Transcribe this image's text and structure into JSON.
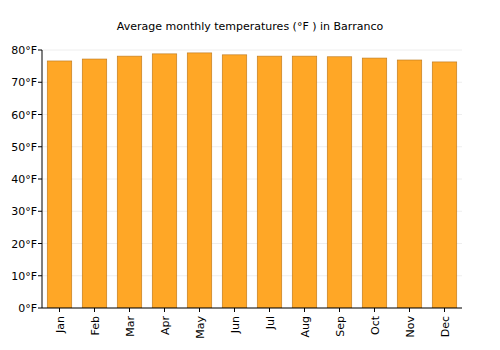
{
  "chart_data": {
    "type": "bar",
    "title": "Average monthly temperatures (°F ) in Barranco",
    "categories": [
      "Jan",
      "Feb",
      "Mar",
      "Apr",
      "May",
      "Jun",
      "Jul",
      "Aug",
      "Sep",
      "Oct",
      "Nov",
      "Dec"
    ],
    "values": [
      76.6,
      77.2,
      78.1,
      78.8,
      79.1,
      78.5,
      78.1,
      78.1,
      77.9,
      77.5,
      76.9,
      76.3
    ],
    "color": "#ffa726",
    "ylim": [
      0,
      80
    ],
    "yticks": [
      {
        "value": 0,
        "label": "0°F"
      },
      {
        "value": 10,
        "label": "10°F"
      },
      {
        "value": 20,
        "label": "20°F"
      },
      {
        "value": 30,
        "label": "30°F"
      },
      {
        "value": 40,
        "label": "40°F"
      },
      {
        "value": 50,
        "label": "50°F"
      },
      {
        "value": 60,
        "label": "60°F"
      },
      {
        "value": 70,
        "label": "70°F"
      },
      {
        "value": 80,
        "label": "80°F"
      }
    ],
    "grid": true
  }
}
